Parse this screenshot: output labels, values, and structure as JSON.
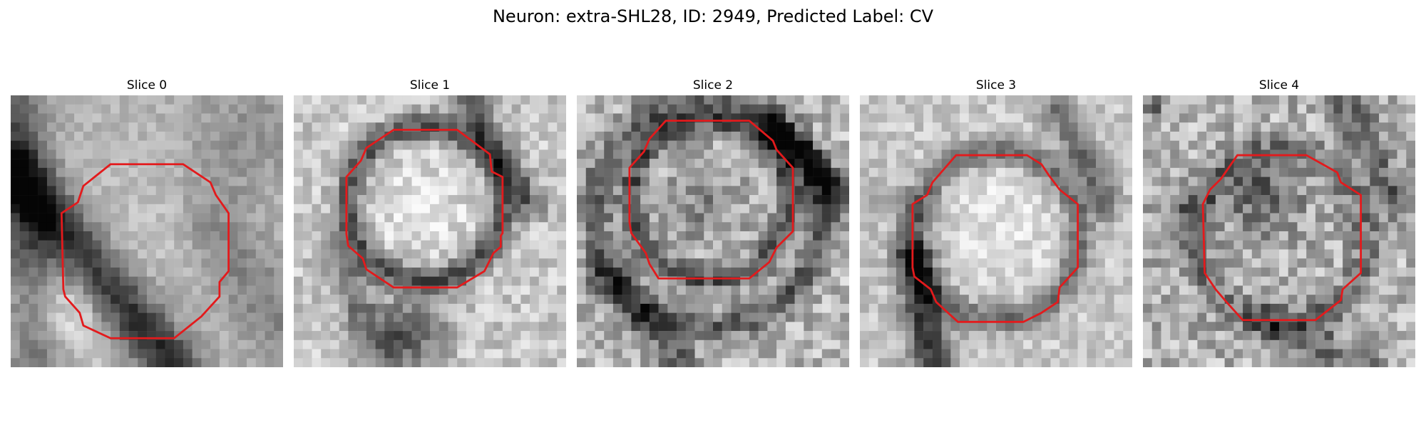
{
  "figure": {
    "title": "Neuron: extra-SHL28, ID: 2949, Predicted Label: CV"
  },
  "overlay_color": "#e31a1c",
  "slices": [
    {
      "label": "Slice 0"
    },
    {
      "label": "Slice 1"
    },
    {
      "label": "Slice 2"
    },
    {
      "label": "Slice 3"
    },
    {
      "label": "Slice 4"
    }
  ]
}
